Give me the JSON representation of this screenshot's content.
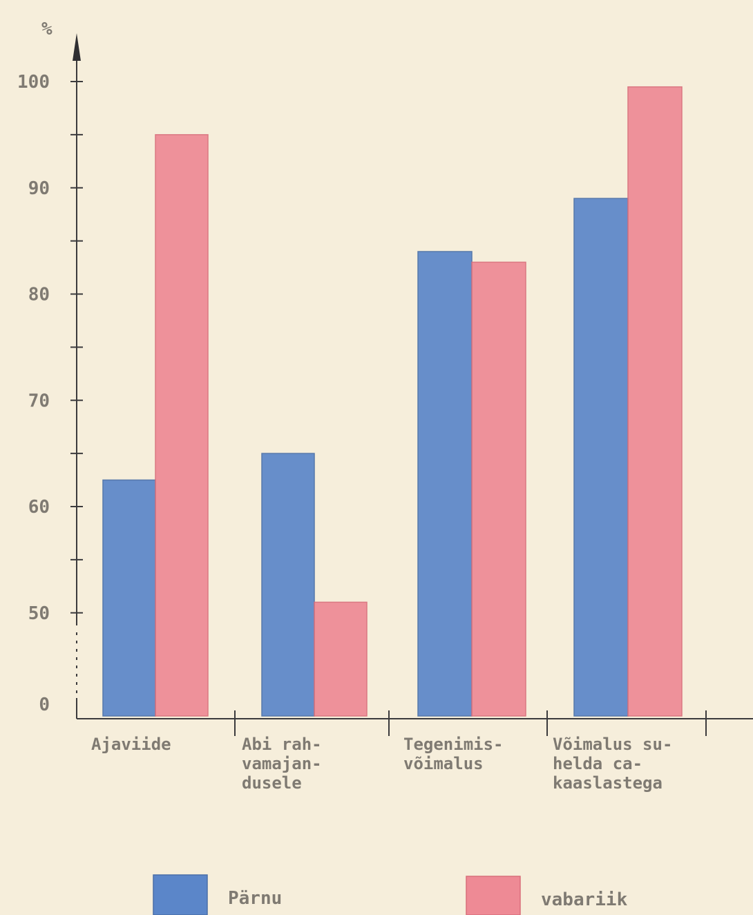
{
  "chart_data": {
    "type": "bar",
    "ylabel": "%",
    "yticks": [
      "100",
      "90",
      "80",
      "70",
      "60",
      "50",
      "0"
    ],
    "ylim": [
      40,
      100
    ],
    "axis_break": true,
    "categories": [
      [
        "Ajaviide"
      ],
      [
        "Abi rah-",
        "vamajan-",
        "dusele"
      ],
      [
        "Tegenimis-",
        "võimalus"
      ],
      [
        "Võimalus su-",
        "helda ca-",
        "kaaslastega"
      ]
    ],
    "series": [
      {
        "name": "Pärnu",
        "color": "#5b86c9",
        "values": [
          62.5,
          65,
          84,
          89
        ]
      },
      {
        "name": "vabariik",
        "color": "#ee8a95",
        "values": [
          95,
          51,
          83,
          99.5
        ]
      }
    ],
    "legend": "bottom"
  }
}
